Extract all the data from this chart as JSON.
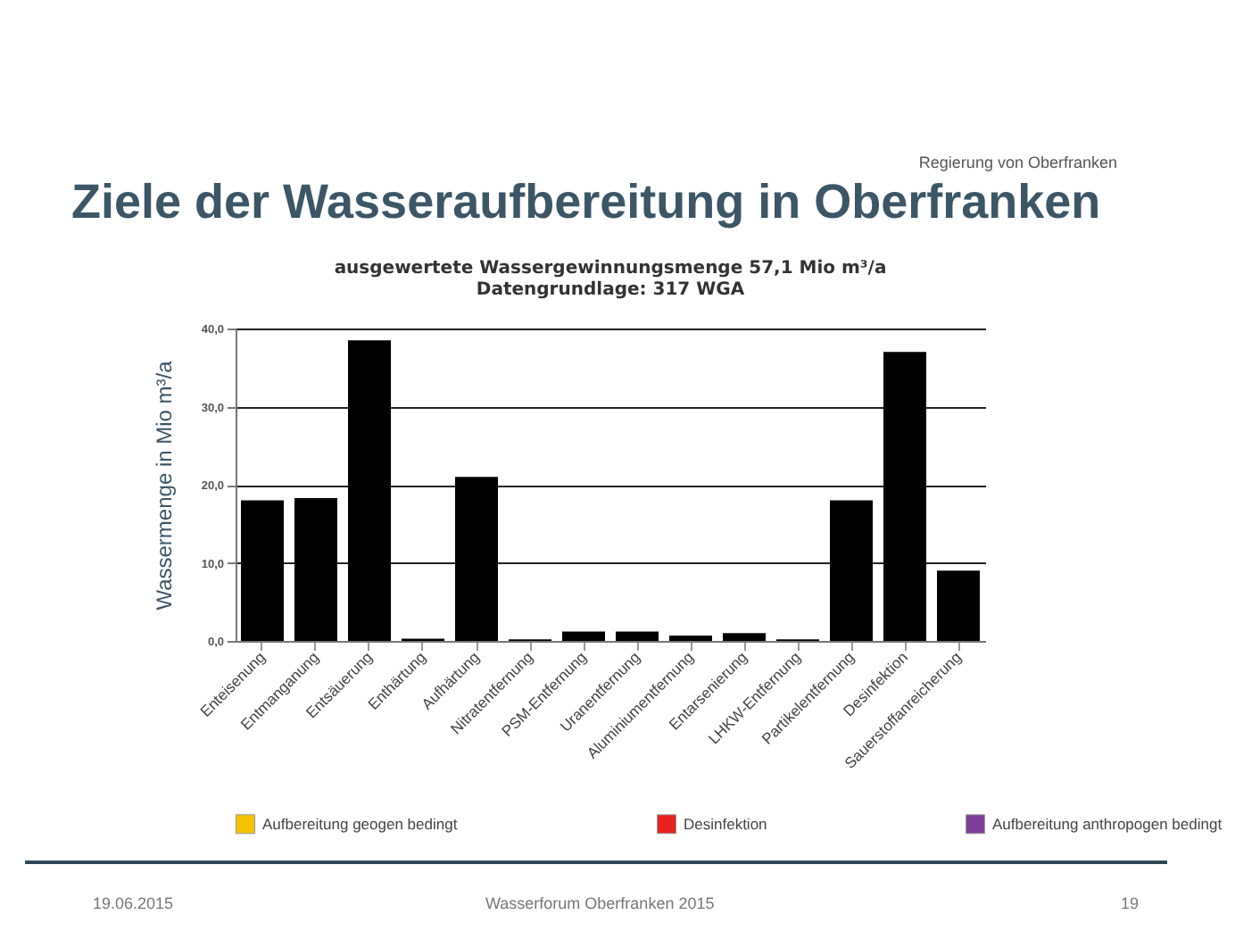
{
  "chart_data": {
    "type": "bar",
    "title": "Ziele der Wasseraufbereitung in Oberfranken",
    "subtitle": "ausgewertete Wassergewinnungsmenge 57,1 Mio m³/a\nDatengrundlage: 317 WGA",
    "ylabel": "Wassermenge in Mio m³/a",
    "categories": [
      "Enteisenung",
      "Entmanganung",
      "Entsäuerung",
      "Enthärtung",
      "Aufhärtung",
      "Nitratentfernung",
      "PSM-Entfernung",
      "Uranentfernung",
      "Aluminiumentfernung",
      "Entarsenierung",
      "LHKW-Entfernung",
      "Partikelentfernung",
      "Desinfektion",
      "Sauerstoffanreicherung"
    ],
    "series": [
      {
        "color": "#000000",
        "values": [
          18,
          18.3,
          38.5,
          0.3,
          21,
          0.2,
          1.2,
          1.2,
          0.7,
          1,
          0.2,
          18,
          37,
          9
        ]
      },
      {
        "name": "Aufbereitung geogen bedingt",
        "color": "#f5c400",
        "values": [
          null,
          null,
          null,
          null,
          null,
          null,
          null,
          null,
          null,
          null,
          null,
          null,
          null,
          null
        ]
      },
      {
        "name": "Desinfektion",
        "color": "#e52421",
        "values": [
          null,
          null,
          null,
          null,
          null,
          null,
          null,
          null,
          null,
          null,
          null,
          null,
          null,
          null
        ]
      },
      {
        "name": "Aufbereitung anthropogen bedingt",
        "color": "#7b3f98",
        "values": [
          null,
          null,
          null,
          null,
          null,
          null,
          null,
          null,
          null,
          null,
          null,
          null,
          null,
          null
        ]
      }
    ],
    "ylim": [
      0,
      40
    ],
    "yticks": [
      {
        "value": 0,
        "label": "0,0"
      },
      {
        "value": 10,
        "label": "10,0"
      },
      {
        "value": 20,
        "label": "20,0"
      },
      {
        "value": 30,
        "label": "30,0"
      },
      {
        "value": 40,
        "label": "40,0"
      }
    ],
    "grid": "y",
    "legend": "bottom",
    "annotations": [
      "Regierung von Oberfranken",
      "19.06.2015",
      "Wasserforum Oberfranken 2015",
      "19"
    ]
  }
}
